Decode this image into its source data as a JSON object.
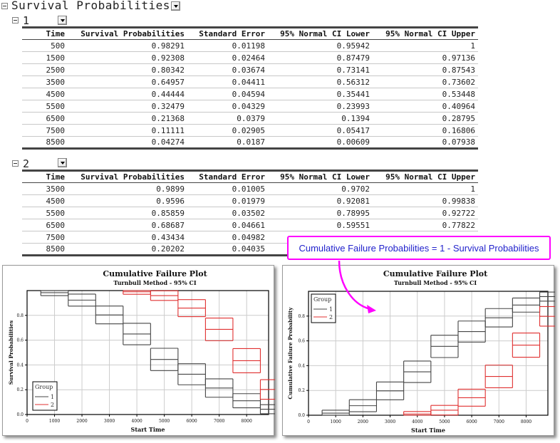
{
  "report": {
    "title": "Survival Probabilities",
    "columns": [
      "Time",
      "Survival Probabilities",
      "Standard Error",
      "95% Normal CI Lower",
      "95% Normal CI Upper"
    ],
    "groups": [
      {
        "label": "1",
        "rows": [
          [
            "500",
            "0.98291",
            "0.01198",
            "0.95942",
            "1"
          ],
          [
            "1500",
            "0.92308",
            "0.02464",
            "0.87479",
            "0.97136"
          ],
          [
            "2500",
            "0.80342",
            "0.03674",
            "0.73141",
            "0.87543"
          ],
          [
            "3500",
            "0.64957",
            "0.04411",
            "0.56312",
            "0.73602"
          ],
          [
            "4500",
            "0.44444",
            "0.04594",
            "0.35441",
            "0.53448"
          ],
          [
            "5500",
            "0.32479",
            "0.04329",
            "0.23993",
            "0.40964"
          ],
          [
            "6500",
            "0.21368",
            "0.0379",
            "0.1394",
            "0.28795"
          ],
          [
            "7500",
            "0.11111",
            "0.02905",
            "0.05417",
            "0.16806"
          ],
          [
            "8500",
            "0.04274",
            "0.0187",
            "0.00609",
            "0.07938"
          ]
        ]
      },
      {
        "label": "2",
        "rows": [
          [
            "3500",
            "0.9899",
            "0.01005",
            "0.9702",
            "1"
          ],
          [
            "4500",
            "0.9596",
            "0.01979",
            "0.92081",
            "0.99838"
          ],
          [
            "5500",
            "0.85859",
            "0.03502",
            "0.78995",
            "0.92722"
          ],
          [
            "6500",
            "0.68687",
            "0.04661",
            "0.59551",
            "0.77822"
          ],
          [
            "7500",
            "0.43434",
            "0.04982",
            "",
            ""
          ],
          [
            "8500",
            "0.20202",
            "0.04035",
            "",
            ""
          ]
        ]
      }
    ]
  },
  "callout": {
    "text": "Cumulative Failure Probabilities = 1 - Survival Probabilities",
    "border_color": "#ff00ff",
    "text_color": "#2222cc"
  },
  "chart_data": [
    {
      "type": "line",
      "step": true,
      "title": "Cumulative Failure Plot",
      "subtitle": "Turnbull Method - 95% CI",
      "xlabel": "Start Time",
      "ylabel": "Survival Probabilities",
      "xlim": [
        0,
        8800
      ],
      "ylim": [
        0,
        1.0
      ],
      "xticks": [
        "0",
        "1000",
        "2000",
        "3000",
        "4000",
        "5000",
        "6000",
        "7000",
        "8000"
      ],
      "yticks": [
        "0.0",
        "0.2",
        "0.4",
        "0.6",
        "0.8"
      ],
      "grid": true,
      "legend": {
        "title": "Group",
        "position": "lower-left",
        "entries": [
          "1",
          "2"
        ]
      },
      "series": [
        {
          "name": "1",
          "color": "#444444",
          "x": [
            500,
            1500,
            2500,
            3500,
            4500,
            5500,
            6500,
            7500,
            8500
          ],
          "estimate": [
            0.98291,
            0.92308,
            0.80342,
            0.64957,
            0.44444,
            0.32479,
            0.21368,
            0.11111,
            0.04274
          ],
          "lower": [
            0.95942,
            0.87479,
            0.73141,
            0.56312,
            0.35441,
            0.23993,
            0.1394,
            0.05417,
            0.00609
          ],
          "upper": [
            1,
            0.97136,
            0.87543,
            0.73602,
            0.53448,
            0.40964,
            0.28795,
            0.16806,
            0.07938
          ]
        },
        {
          "name": "2",
          "color": "#e03030",
          "x": [
            3500,
            4500,
            5500,
            6500,
            7500,
            8500
          ],
          "estimate": [
            0.9899,
            0.9596,
            0.85859,
            0.68687,
            0.43434,
            0.20202
          ],
          "lower": [
            0.9702,
            0.92081,
            0.78995,
            0.59551,
            0.33669,
            0.12294
          ],
          "upper": [
            1,
            0.99838,
            0.92722,
            0.77822,
            0.53198,
            0.2811
          ]
        }
      ]
    },
    {
      "type": "line",
      "step": true,
      "title": "Cumulative Failure Plot",
      "subtitle": "Turnbull Method - 95% CI",
      "xlabel": "Start Time",
      "ylabel": "Cumulative Failure Probability",
      "xlim": [
        0,
        8800
      ],
      "ylim": [
        0,
        1.0
      ],
      "xticks": [
        "0",
        "1000",
        "2000",
        "3000",
        "4000",
        "5000",
        "6000",
        "7000",
        "8000"
      ],
      "yticks": [
        "0.0",
        "0.2",
        "0.4",
        "0.6",
        "0.8"
      ],
      "grid": true,
      "legend": {
        "title": "Group",
        "position": "upper-left",
        "entries": [
          "1",
          "2"
        ]
      },
      "series": [
        {
          "name": "1",
          "color": "#444444",
          "x": [
            500,
            1500,
            2500,
            3500,
            4500,
            5500,
            6500,
            7500,
            8500
          ],
          "estimate": [
            0.01709,
            0.07692,
            0.19658,
            0.35043,
            0.55556,
            0.67521,
            0.78632,
            0.88889,
            0.95726
          ],
          "lower": [
            0,
            0.02864,
            0.12457,
            0.26398,
            0.46552,
            0.59036,
            0.71205,
            0.83194,
            0.92062
          ],
          "upper": [
            0.04058,
            0.12521,
            0.26859,
            0.43688,
            0.64559,
            0.76007,
            0.8606,
            0.94583,
            0.99391
          ]
        },
        {
          "name": "2",
          "color": "#e03030",
          "x": [
            3500,
            4500,
            5500,
            6500,
            7500,
            8500
          ],
          "estimate": [
            0.0101,
            0.0404,
            0.14141,
            0.31313,
            0.56566,
            0.79798
          ],
          "lower": [
            0,
            0.00162,
            0.07278,
            0.22178,
            0.46802,
            0.7189
          ],
          "upper": [
            0.0298,
            0.07919,
            0.21005,
            0.40449,
            0.66331,
            0.87706
          ]
        }
      ]
    }
  ]
}
